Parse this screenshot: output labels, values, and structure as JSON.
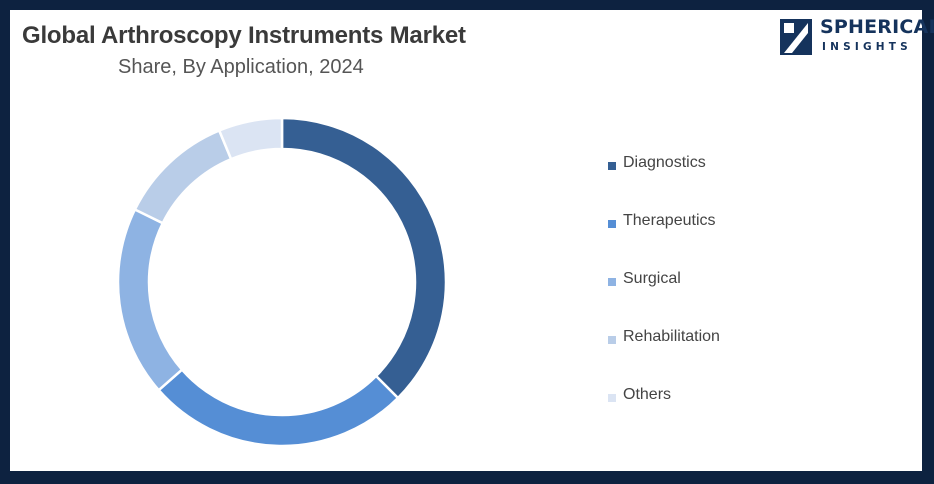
{
  "header": {
    "title": "Global Arthroscopy Instruments Market",
    "subtitle": "Share, By Application, 2024"
  },
  "logo": {
    "line1": "SPHERICAL",
    "line2": "INSIGHTS"
  },
  "chart_data": {
    "type": "pie",
    "style": "donut",
    "title": "Global Arthroscopy Instruments Market",
    "subtitle": "Share, By Application, 2024",
    "legend_position": "right",
    "categories": [
      "Diagnostics",
      "Therapeutics",
      "Surgical",
      "Rehabilitation",
      "Others"
    ],
    "values": [
      36,
      25,
      18,
      11,
      6
    ],
    "colors": [
      "#355f93",
      "#558ed5",
      "#8eb3e3",
      "#b9cde8",
      "#dbe4f3"
    ]
  }
}
